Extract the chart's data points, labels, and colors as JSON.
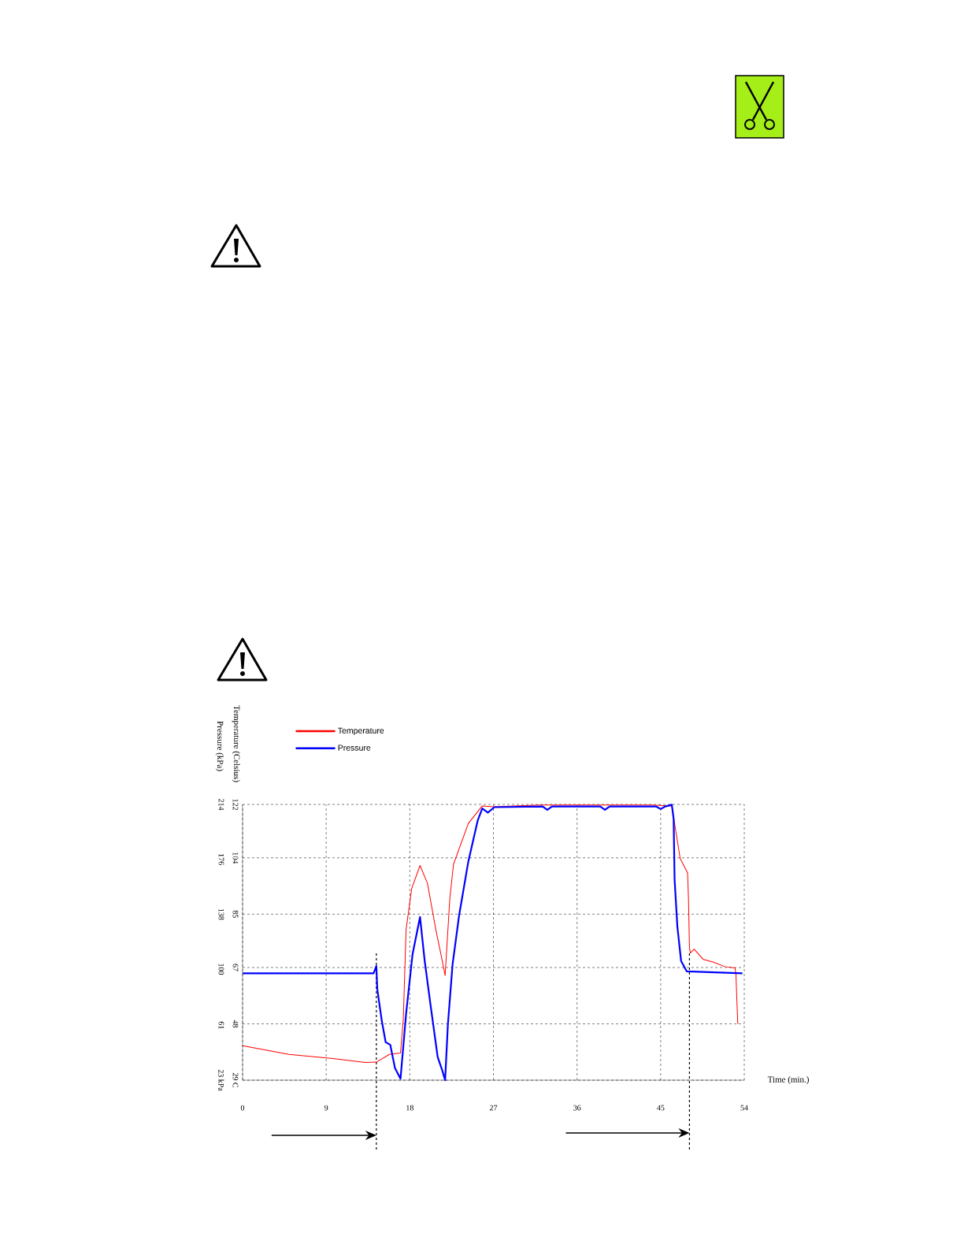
{
  "chart_data": {
    "type": "line",
    "xlabel": "Time (min.)",
    "ylabel": "Temperature (Celsius)",
    "y2label": "Pressure (kPa)",
    "xlim": [
      0,
      54
    ],
    "xticks": [
      0,
      9,
      18,
      27,
      36,
      45,
      54
    ],
    "ylim": [
      29,
      122
    ],
    "yticks": [
      {
        "value": 29,
        "label": "29 C"
      },
      48,
      67,
      85,
      104,
      122
    ],
    "y2lim": [
      23,
      214
    ],
    "y2ticks": [
      {
        "value": 23,
        "label": "23 kPa"
      },
      61,
      100,
      138,
      176,
      214
    ],
    "grid": true,
    "legend": "top left",
    "ref_lines": [
      {
        "axis": "x",
        "value": 14.4,
        "line_style": "dashed"
      },
      {
        "axis": "x",
        "value": 48.1,
        "line_style": "dashed"
      }
    ],
    "series": [
      {
        "name": "Temperature",
        "color": "#ff0000",
        "x": [
          0,
          5.0,
          9.7,
          13.2,
          14.4,
          15.8,
          17.0,
          17.3,
          17.6,
          18.2,
          19.1,
          19.9,
          20.8,
          21.4,
          21.8,
          22.3,
          22.7,
          24.3,
          25.8,
          27,
          32,
          38,
          44,
          46.2,
          47.1,
          47.9,
          48.0,
          48.1,
          48.2,
          48.6,
          49.6,
          50.7,
          51.9,
          53.0,
          53.1,
          53.3
        ],
        "values": [
          40.6,
          37.7,
          36.3,
          35.0,
          35.1,
          37.7,
          38.2,
          49.6,
          79.8,
          93.6,
          101.4,
          95.4,
          79.8,
          70.7,
          64.3,
          89.9,
          101.8,
          115.6,
          121.5,
          121.2,
          121.8,
          121.8,
          121.8,
          121.5,
          103.8,
          98.9,
          89.7,
          73.7,
          71.9,
          73.2,
          69.7,
          68.8,
          67.3,
          66.9,
          64.8,
          48.0
        ]
      },
      {
        "name": "Pressure",
        "color": "#0000ff",
        "axis": "y2",
        "x": [
          0,
          14.1,
          14.4,
          14.5,
          15.0,
          15.4,
          15.9,
          16.4,
          17.0,
          17.6,
          18.3,
          19.1,
          19.6,
          20.2,
          21.0,
          21.5,
          21.8,
          22.1,
          22.6,
          23.3,
          24.3,
          25.3,
          25.8,
          26.4,
          27.1,
          32.3,
          32.8,
          33.3,
          38.5,
          39.0,
          39.5,
          44.5,
          45.0,
          45.5,
          46.2,
          46.4,
          46.5,
          46.8,
          47.2,
          47.8,
          53.8
        ],
        "values": [
          97,
          97,
          102,
          86,
          63.5,
          49.3,
          47.5,
          31.5,
          24,
          69,
          110.5,
          136,
          105.8,
          76.6,
          39,
          29.6,
          23,
          61.6,
          103,
          136.9,
          174.5,
          202.7,
          211.2,
          208.4,
          212.1,
          212.6,
          210.2,
          212.6,
          212.6,
          210.2,
          212.6,
          212.6,
          210.8,
          212.6,
          213.8,
          203.8,
          162,
          129.3,
          105.6,
          98.4,
          97
        ]
      }
    ]
  }
}
